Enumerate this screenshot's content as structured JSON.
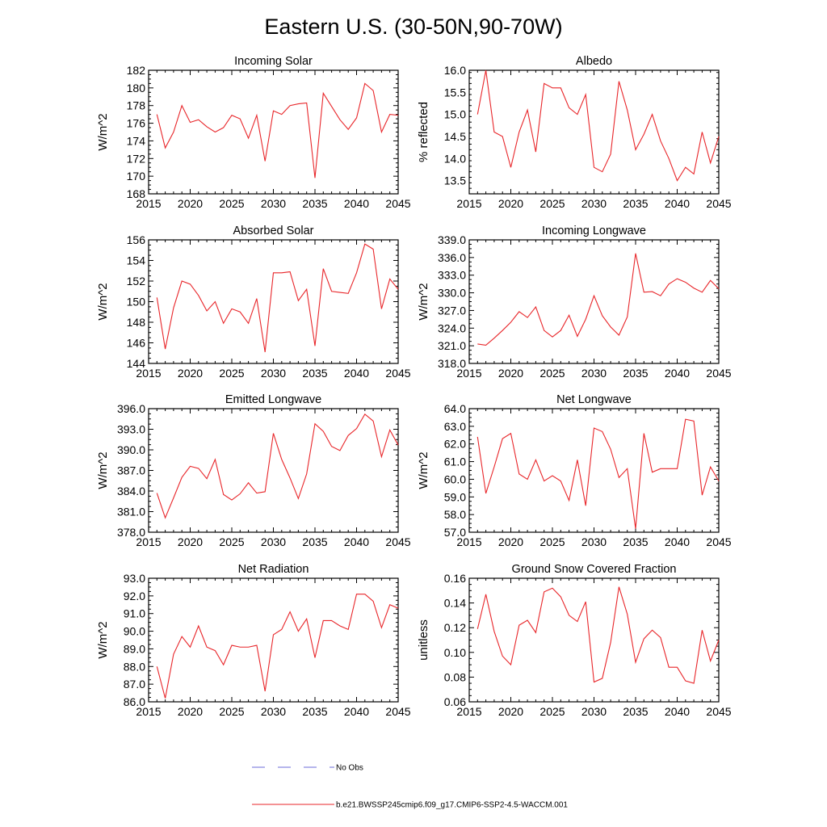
{
  "figure": {
    "title": "Eastern U.S. (30-50N,90-70W)",
    "legend": [
      {
        "label": "No Obs",
        "color": "#6b6bd8",
        "style": "dashed"
      },
      {
        "label": "b.e21.BWSSP245cmip6.f09_g17.CMIP6-SSP2-4.5-WACCM.001",
        "color": "#e8262a",
        "style": "solid"
      }
    ]
  },
  "chart_data": [
    {
      "type": "line",
      "title": "Incoming Solar",
      "ylabel": "W/m^2",
      "xlim": [
        2015,
        2045
      ],
      "ylim": [
        168,
        182
      ],
      "xticks": [
        2015,
        2020,
        2025,
        2030,
        2035,
        2040,
        2045
      ],
      "yticks": [
        168,
        170,
        172,
        174,
        176,
        178,
        180,
        182
      ],
      "ytick_decimals": 0,
      "x": [
        2016,
        2017,
        2018,
        2019,
        2020,
        2021,
        2022,
        2023,
        2024,
        2025,
        2026,
        2027,
        2028,
        2029,
        2030,
        2031,
        2032,
        2033,
        2034,
        2035,
        2036,
        2037,
        2038,
        2039,
        2040,
        2041,
        2042,
        2043,
        2044,
        2045
      ],
      "series": [
        {
          "color": "#e8262a",
          "values": [
            177.0,
            173.2,
            175.0,
            178.0,
            176.1,
            176.4,
            175.6,
            175.0,
            175.5,
            176.9,
            176.5,
            174.3,
            176.9,
            171.7,
            177.4,
            177.0,
            178.0,
            178.2,
            178.3,
            169.8,
            179.4,
            177.9,
            176.4,
            175.3,
            176.6,
            180.5,
            179.7,
            175.0,
            177.0,
            176.9
          ]
        }
      ]
    },
    {
      "type": "line",
      "title": "Albedo",
      "ylabel": "% reflected",
      "xlim": [
        2015,
        2045
      ],
      "ylim": [
        13.2,
        16.0
      ],
      "xticks": [
        2015,
        2020,
        2025,
        2030,
        2035,
        2040,
        2045
      ],
      "yticks": [
        13.5,
        14.0,
        14.5,
        15.0,
        15.5,
        16.0
      ],
      "ytick_decimals": 1,
      "x": [
        2016,
        2017,
        2018,
        2019,
        2020,
        2021,
        2022,
        2023,
        2024,
        2025,
        2026,
        2027,
        2028,
        2029,
        2030,
        2031,
        2032,
        2033,
        2034,
        2035,
        2036,
        2037,
        2038,
        2039,
        2040,
        2041,
        2042,
        2043,
        2044,
        2045
      ],
      "series": [
        {
          "color": "#e8262a",
          "values": [
            15.0,
            16.0,
            14.6,
            14.5,
            13.8,
            14.6,
            15.1,
            14.15,
            15.7,
            15.6,
            15.6,
            15.15,
            15.0,
            15.45,
            13.8,
            13.7,
            14.1,
            15.75,
            15.1,
            14.2,
            14.55,
            15.0,
            14.4,
            14.0,
            13.5,
            13.8,
            13.65,
            14.6,
            13.9,
            14.5
          ]
        }
      ]
    },
    {
      "type": "line",
      "title": "Absorbed Solar",
      "ylabel": "W/m^2",
      "xlim": [
        2015,
        2045
      ],
      "ylim": [
        144,
        156
      ],
      "xticks": [
        2015,
        2020,
        2025,
        2030,
        2035,
        2040,
        2045
      ],
      "yticks": [
        144,
        146,
        148,
        150,
        152,
        154,
        156
      ],
      "ytick_decimals": 0,
      "x": [
        2016,
        2017,
        2018,
        2019,
        2020,
        2021,
        2022,
        2023,
        2024,
        2025,
        2026,
        2027,
        2028,
        2029,
        2030,
        2031,
        2032,
        2033,
        2034,
        2035,
        2036,
        2037,
        2038,
        2039,
        2040,
        2041,
        2042,
        2043,
        2044,
        2045
      ],
      "series": [
        {
          "color": "#e8262a",
          "values": [
            150.4,
            145.4,
            149.4,
            152.0,
            151.7,
            150.6,
            149.1,
            150.0,
            147.9,
            149.3,
            149.0,
            147.9,
            150.3,
            145.1,
            152.8,
            152.8,
            152.9,
            150.1,
            151.2,
            145.7,
            153.2,
            151.0,
            150.9,
            150.8,
            152.8,
            155.6,
            155.1,
            149.3,
            152.2,
            151.2
          ]
        }
      ]
    },
    {
      "type": "line",
      "title": "Incoming Longwave",
      "ylabel": "W/m^2",
      "xlim": [
        2015,
        2045
      ],
      "ylim": [
        318.0,
        339.0
      ],
      "xticks": [
        2015,
        2020,
        2025,
        2030,
        2035,
        2040,
        2045
      ],
      "yticks": [
        318.0,
        321.0,
        324.0,
        327.0,
        330.0,
        333.0,
        336.0,
        339.0
      ],
      "ytick_decimals": 1,
      "x": [
        2016,
        2017,
        2018,
        2019,
        2020,
        2021,
        2022,
        2023,
        2024,
        2025,
        2026,
        2027,
        2028,
        2029,
        2030,
        2031,
        2032,
        2033,
        2034,
        2035,
        2036,
        2037,
        2038,
        2039,
        2040,
        2041,
        2042,
        2043,
        2044,
        2045
      ],
      "series": [
        {
          "color": "#e8262a",
          "values": [
            321.3,
            321.1,
            322.3,
            323.6,
            325.0,
            326.8,
            325.8,
            327.6,
            323.6,
            322.5,
            323.6,
            326.2,
            322.6,
            325.5,
            329.5,
            326.1,
            324.2,
            322.8,
            325.9,
            336.7,
            330.1,
            330.2,
            329.5,
            331.5,
            332.4,
            331.8,
            330.8,
            330.1,
            332.1,
            330.7
          ]
        }
      ]
    },
    {
      "type": "line",
      "title": "Emitted Longwave",
      "ylabel": "W/m^2",
      "xlim": [
        2015,
        2045
      ],
      "ylim": [
        378.0,
        396.0
      ],
      "xticks": [
        2015,
        2020,
        2025,
        2030,
        2035,
        2040,
        2045
      ],
      "yticks": [
        378.0,
        381.0,
        384.0,
        387.0,
        390.0,
        393.0,
        396.0
      ],
      "ytick_decimals": 1,
      "x": [
        2016,
        2017,
        2018,
        2019,
        2020,
        2021,
        2022,
        2023,
        2024,
        2025,
        2026,
        2027,
        2028,
        2029,
        2030,
        2031,
        2032,
        2033,
        2034,
        2035,
        2036,
        2037,
        2038,
        2039,
        2040,
        2041,
        2042,
        2043,
        2044,
        2045
      ],
      "series": [
        {
          "color": "#e8262a",
          "values": [
            383.7,
            380.1,
            383.0,
            386.0,
            387.6,
            387.3,
            385.8,
            388.6,
            383.5,
            382.7,
            383.6,
            385.2,
            383.7,
            383.9,
            392.4,
            388.6,
            385.9,
            382.9,
            386.5,
            393.8,
            392.7,
            390.5,
            389.9,
            392.1,
            393.1,
            395.2,
            394.2,
            389.0,
            392.9,
            390.7
          ]
        }
      ]
    },
    {
      "type": "line",
      "title": "Net Longwave",
      "ylabel": "W/m^2",
      "xlim": [
        2015,
        2045
      ],
      "ylim": [
        57.0,
        64.0
      ],
      "xticks": [
        2015,
        2020,
        2025,
        2030,
        2035,
        2040,
        2045
      ],
      "yticks": [
        57.0,
        58.0,
        59.0,
        60.0,
        61.0,
        62.0,
        63.0,
        64.0
      ],
      "ytick_decimals": 1,
      "x": [
        2016,
        2017,
        2018,
        2019,
        2020,
        2021,
        2022,
        2023,
        2024,
        2025,
        2026,
        2027,
        2028,
        2029,
        2030,
        2031,
        2032,
        2033,
        2034,
        2035,
        2036,
        2037,
        2038,
        2039,
        2040,
        2041,
        2042,
        2043,
        2044,
        2045
      ],
      "series": [
        {
          "color": "#e8262a",
          "values": [
            62.4,
            59.2,
            60.7,
            62.3,
            62.6,
            60.3,
            60.0,
            61.1,
            59.9,
            60.2,
            59.9,
            58.8,
            61.1,
            58.5,
            62.9,
            62.7,
            61.7,
            60.1,
            60.6,
            57.2,
            62.6,
            60.4,
            60.6,
            60.6,
            60.6,
            63.4,
            63.3,
            59.1,
            60.7,
            59.9
          ]
        }
      ]
    },
    {
      "type": "line",
      "title": "Net Radiation",
      "ylabel": "W/m^2",
      "xlim": [
        2015,
        2045
      ],
      "ylim": [
        86.0,
        93.0
      ],
      "xticks": [
        2015,
        2020,
        2025,
        2030,
        2035,
        2040,
        2045
      ],
      "yticks": [
        86.0,
        87.0,
        88.0,
        89.0,
        90.0,
        91.0,
        92.0,
        93.0
      ],
      "ytick_decimals": 1,
      "x": [
        2016,
        2017,
        2018,
        2019,
        2020,
        2021,
        2022,
        2023,
        2024,
        2025,
        2026,
        2027,
        2028,
        2029,
        2030,
        2031,
        2032,
        2033,
        2034,
        2035,
        2036,
        2037,
        2038,
        2039,
        2040,
        2041,
        2042,
        2043,
        2044,
        2045
      ],
      "series": [
        {
          "color": "#e8262a",
          "values": [
            88.0,
            86.2,
            88.7,
            89.7,
            89.1,
            90.3,
            89.1,
            88.9,
            88.1,
            89.2,
            89.1,
            89.1,
            89.2,
            86.6,
            89.8,
            90.1,
            91.1,
            90.0,
            90.7,
            88.5,
            90.6,
            90.6,
            90.3,
            90.1,
            92.1,
            92.1,
            91.7,
            90.2,
            91.5,
            91.3
          ]
        }
      ]
    },
    {
      "type": "line",
      "title": "Ground Snow Covered Fraction",
      "ylabel": "unitless",
      "xlim": [
        2015,
        2045
      ],
      "ylim": [
        0.06,
        0.16
      ],
      "xticks": [
        2015,
        2020,
        2025,
        2030,
        2035,
        2040,
        2045
      ],
      "yticks": [
        0.06,
        0.08,
        0.1,
        0.12,
        0.14,
        0.16
      ],
      "ytick_decimals": 2,
      "x": [
        2016,
        2017,
        2018,
        2019,
        2020,
        2021,
        2022,
        2023,
        2024,
        2025,
        2026,
        2027,
        2028,
        2029,
        2030,
        2031,
        2032,
        2033,
        2034,
        2035,
        2036,
        2037,
        2038,
        2039,
        2040,
        2041,
        2042,
        2043,
        2044,
        2045
      ],
      "series": [
        {
          "color": "#e8262a",
          "values": [
            0.119,
            0.147,
            0.117,
            0.097,
            0.09,
            0.122,
            0.126,
            0.116,
            0.149,
            0.152,
            0.145,
            0.13,
            0.125,
            0.141,
            0.076,
            0.079,
            0.108,
            0.153,
            0.131,
            0.092,
            0.111,
            0.118,
            0.112,
            0.088,
            0.088,
            0.077,
            0.075,
            0.118,
            0.093,
            0.11
          ]
        }
      ]
    }
  ]
}
